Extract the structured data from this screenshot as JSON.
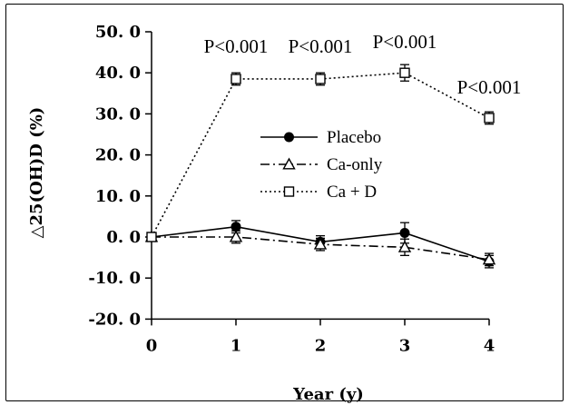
{
  "chart_data": {
    "type": "line",
    "xlabel": "Year (y)",
    "ylabel": "△25(OH)D (%)",
    "x": [
      0,
      1,
      2,
      3,
      4
    ],
    "x_tick_labels": [
      "0",
      "1",
      "2",
      "3",
      "4"
    ],
    "ylim": [
      -20,
      50
    ],
    "y_tick_labels": [
      "50. 0",
      "40. 0",
      "30. 0",
      "20. 0",
      "10. 0",
      "0. 0",
      "-10. 0",
      "-20. 0"
    ],
    "y_tick_values": [
      50,
      40,
      30,
      20,
      10,
      0,
      -10,
      -20
    ],
    "grid": false,
    "legend_position": "center-right",
    "series": [
      {
        "name": "Placebo",
        "line_style": "solid",
        "marker": "filled-circle",
        "values": [
          0,
          2.5,
          -1.2,
          1.0,
          -6.0
        ],
        "errors": [
          0.5,
          1.5,
          1.5,
          2.5,
          1.5
        ]
      },
      {
        "name": "Ca-only",
        "line_style": "dash-dot",
        "marker": "open-triangle",
        "values": [
          0,
          0,
          -1.8,
          -2.5,
          -5.5
        ],
        "errors": [
          0.5,
          1.5,
          1.5,
          2.0,
          1.5
        ]
      },
      {
        "name": "Ca + D",
        "line_style": "dotted",
        "marker": "open-square",
        "values": [
          0,
          38.5,
          38.5,
          40.0,
          29.0
        ],
        "errors": [
          0.5,
          1.5,
          1.5,
          2.0,
          1.5
        ]
      }
    ],
    "annotations": [
      {
        "x": 1,
        "text": "P<0.001"
      },
      {
        "x": 2,
        "text": "P<0.001"
      },
      {
        "x": 3,
        "text": "P<0.001"
      },
      {
        "x": 4,
        "text": "P<0.001"
      }
    ]
  }
}
